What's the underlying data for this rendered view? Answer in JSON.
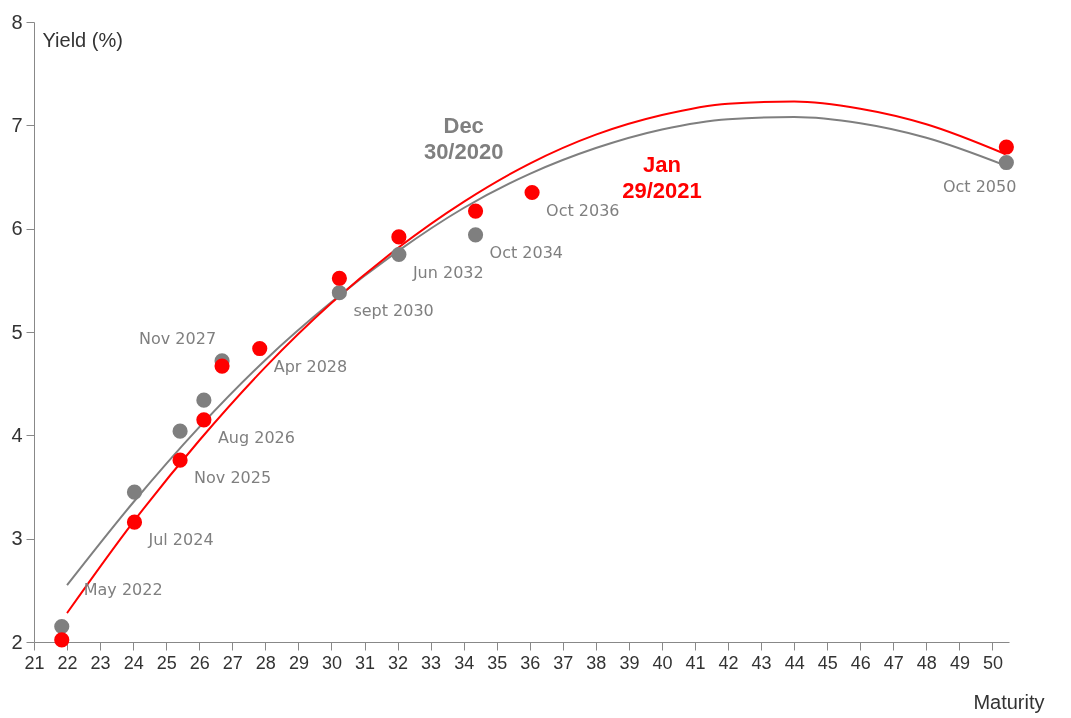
{
  "chart_data": {
    "type": "scatter",
    "xlabel": "Maturity",
    "ylabel": "Yield (%)",
    "xlim": [
      21,
      50.5
    ],
    "xticks": [
      21,
      22,
      23,
      24,
      25,
      26,
      27,
      28,
      29,
      30,
      31,
      32,
      33,
      34,
      35,
      36,
      37,
      38,
      39,
      40,
      41,
      42,
      43,
      44,
      45,
      46,
      47,
      48,
      49,
      50
    ],
    "ylim": [
      2,
      8
    ],
    "yticks": [
      2,
      3,
      4,
      5,
      6,
      7,
      8
    ],
    "grid": false,
    "marker": "circle",
    "series": [
      {
        "type": "line",
        "name": "Dec 30/2020",
        "color": "#7f7f7f",
        "marker": "none",
        "x": [
          22,
          24,
          26,
          28,
          30,
          32,
          34,
          36,
          38,
          40,
          42,
          44,
          46,
          48,
          50.4
        ],
        "values": [
          2.55,
          3.35,
          4.08,
          4.73,
          5.29,
          5.78,
          6.2,
          6.53,
          6.78,
          6.96,
          7.06,
          7.08,
          7.02,
          6.88,
          6.61
        ]
      },
      {
        "type": "line",
        "name": "Jan 29/2021",
        "color": "#ff0000",
        "marker": "none",
        "x": [
          22,
          24,
          26,
          28,
          30,
          32,
          34,
          36,
          38,
          40,
          42,
          44,
          46,
          48,
          50.4
        ],
        "values": [
          2.28,
          3.16,
          3.95,
          4.66,
          5.28,
          5.81,
          6.26,
          6.63,
          6.91,
          7.1,
          7.21,
          7.23,
          7.16,
          7.01,
          6.72
        ]
      },
      {
        "type": "scatter",
        "color": "#7f7f7f",
        "x": [
          21.84,
          24.04,
          25.42,
          26.14,
          26.69,
          27.83,
          30.24,
          32.04,
          34.36,
          36.07,
          50.42
        ],
        "values": [
          2.15,
          3.45,
          4.04,
          4.34,
          4.72,
          null,
          5.38,
          5.75,
          5.94,
          null,
          6.64
        ]
      },
      {
        "type": "scatter",
        "color": "#ff0000",
        "x": [
          21.84,
          24.04,
          25.42,
          26.14,
          26.69,
          27.83,
          30.24,
          32.04,
          34.36,
          36.07,
          50.42
        ],
        "values": [
          2.02,
          3.16,
          3.76,
          4.15,
          4.67,
          4.84,
          5.52,
          5.92,
          6.17,
          6.35,
          6.79
        ]
      }
    ],
    "annotations": [
      {
        "text": "May 2022",
        "x": 21.84,
        "y": 2.15
      },
      {
        "text": "Jul 2024",
        "x": 24.04,
        "y": 3.16
      },
      {
        "text": "Nov 2025",
        "x": 25.42,
        "y": 3.76
      },
      {
        "text": "Aug 2026",
        "x": 26.14,
        "y": 4.15
      },
      {
        "text": "Nov 2027",
        "x": 26.69,
        "y": 4.72
      },
      {
        "text": "Apr 2028",
        "x": 27.83,
        "y": 4.84
      },
      {
        "text": "sept 2030",
        "x": 30.24,
        "y": 5.38
      },
      {
        "text": "Jun 2032",
        "x": 32.04,
        "y": 5.75
      },
      {
        "text": "Oct 2034",
        "x": 34.36,
        "y": 5.94
      },
      {
        "text": "Oct 2036",
        "x": 36.07,
        "y": 6.35
      },
      {
        "text": "Oct 2050",
        "x": 50.42,
        "y": 6.64
      }
    ]
  }
}
